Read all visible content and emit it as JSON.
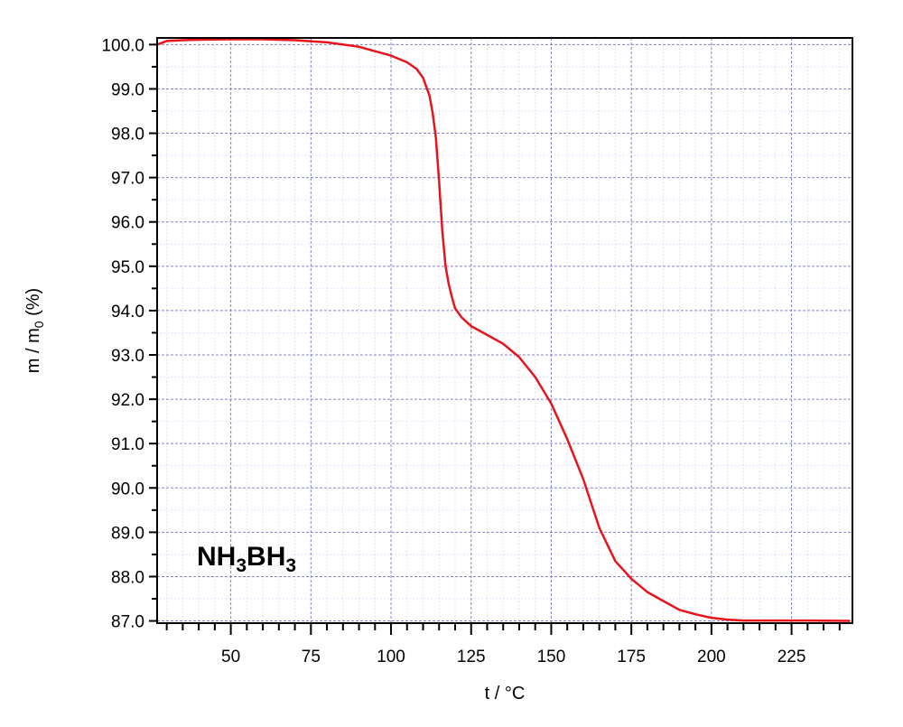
{
  "chart_data": {
    "type": "line",
    "title": "",
    "xlabel": "t / °C",
    "ylabel_main": "m / m",
    "ylabel_sub": "0",
    "ylabel_tail": " (%)",
    "xlim": [
      27,
      244
    ],
    "ylim": [
      86.95,
      100.15
    ],
    "x_ticks": [
      50,
      75,
      100,
      125,
      150,
      175,
      200,
      225
    ],
    "x_tick_labels": [
      "50",
      "75",
      "100",
      "125",
      "150",
      "175",
      "200",
      "225"
    ],
    "x_minor_step": 5,
    "y_ticks": [
      87,
      88,
      89,
      90,
      91,
      92,
      93,
      94,
      95,
      96,
      97,
      98,
      99,
      100
    ],
    "y_tick_labels": [
      "87.0",
      "88.0",
      "89.0",
      "90.0",
      "91.0",
      "92.0",
      "93.0",
      "94.0",
      "95.0",
      "96.0",
      "97.0",
      "98.0",
      "99.0",
      "100.0"
    ],
    "grid": true,
    "annotation": {
      "parts": [
        "NH",
        "3",
        "BH",
        "3"
      ]
    },
    "colors": {
      "series": "#e8141c",
      "grid": "#7777cc",
      "axis": "#000000"
    },
    "series": [
      {
        "x": [
          27,
          30,
          35,
          40,
          50,
          60,
          70,
          80,
          90,
          100,
          105,
          108,
          110,
          112,
          113,
          114,
          115,
          116,
          117,
          118,
          119,
          120,
          122,
          125,
          130,
          135,
          140,
          145,
          150,
          155,
          160,
          165,
          170,
          175,
          180,
          185,
          190,
          195,
          200,
          205,
          210,
          220,
          230,
          243
        ],
        "y": [
          100.0,
          100.08,
          100.1,
          100.11,
          100.12,
          100.12,
          100.1,
          100.05,
          99.95,
          99.75,
          99.6,
          99.45,
          99.25,
          98.85,
          98.45,
          97.9,
          96.9,
          95.8,
          95.0,
          94.6,
          94.3,
          94.05,
          93.85,
          93.65,
          93.45,
          93.25,
          92.95,
          92.5,
          91.9,
          91.1,
          90.2,
          89.1,
          88.35,
          87.95,
          87.65,
          87.45,
          87.25,
          87.15,
          87.07,
          87.03,
          87.01,
          87.01,
          87.01,
          87.0
        ]
      }
    ]
  }
}
